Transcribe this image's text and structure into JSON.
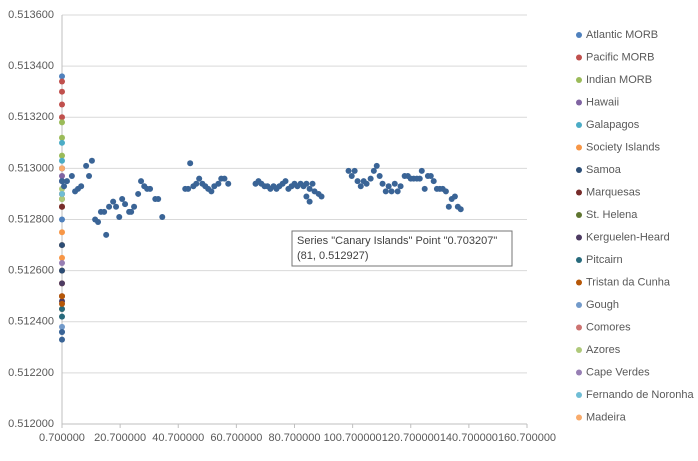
{
  "chart_data": {
    "type": "scatter",
    "xlim": [
      0.7,
      160.7
    ],
    "ylim": [
      0.512,
      0.5136
    ],
    "grid": true,
    "xticks": [
      {
        "value": 0.7,
        "label": "0.700000"
      },
      {
        "value": 20.7,
        "label": "20.700000"
      },
      {
        "value": 40.7,
        "label": "40.700000"
      },
      {
        "value": 60.7,
        "label": "60.700000"
      },
      {
        "value": 80.7,
        "label": "80.700000"
      },
      {
        "value": 100.7,
        "label": "100.700000"
      },
      {
        "value": 120.7,
        "label": "120.700000"
      },
      {
        "value": 140.7,
        "label": "140.700000"
      },
      {
        "value": 160.7,
        "label": "160.700000"
      }
    ],
    "yticks": [
      {
        "value": 0.512,
        "label": "0.512000"
      },
      {
        "value": 0.5122,
        "label": "0.512200"
      },
      {
        "value": 0.5124,
        "label": "0.512400"
      },
      {
        "value": 0.5126,
        "label": "0.512600"
      },
      {
        "value": 0.5128,
        "label": "0.512800"
      },
      {
        "value": 0.513,
        "label": "0.513000"
      },
      {
        "value": 0.5132,
        "label": "0.513200"
      },
      {
        "value": 0.5134,
        "label": "0.513400"
      },
      {
        "value": 0.5136,
        "label": "0.513600"
      }
    ],
    "series": [
      {
        "name": "Atlantic MORB",
        "color": "#4f81bd",
        "x": [
          0.7,
          0.7,
          0.7,
          0.7,
          0.7,
          0.7
        ],
        "values": [
          0.51336,
          0.513,
          0.51295,
          0.5129,
          0.51285,
          0.5128
        ]
      },
      {
        "name": "Pacific MORB",
        "color": "#c0504d",
        "x": [
          0.7,
          0.7,
          0.7,
          0.7
        ],
        "values": [
          0.51334,
          0.5133,
          0.51325,
          0.5132
        ]
      },
      {
        "name": "Indian MORB",
        "color": "#9bbb59",
        "x": [
          0.7,
          0.7,
          0.7
        ],
        "values": [
          0.51318,
          0.51312,
          0.51305
        ]
      },
      {
        "name": "Hawaii",
        "color": "#8064a2",
        "x": [
          0.7,
          0.7
        ],
        "values": [
          0.513,
          0.51297
        ]
      },
      {
        "name": "Galapagos",
        "color": "#4bacc6",
        "x": [
          0.7,
          0.7
        ],
        "values": [
          0.5131,
          0.51303
        ]
      },
      {
        "name": "Society Islands",
        "color": "#f79646",
        "x": [
          0.7,
          0.7,
          0.7,
          0.7,
          0.7,
          0.7,
          0.7
        ],
        "values": [
          0.51285,
          0.51275,
          0.51265,
          0.51255,
          0.51245,
          0.5127,
          0.5126
        ]
      },
      {
        "name": "Samoa",
        "color": "#2c4d75",
        "x": [
          0.7,
          0.7
        ],
        "values": [
          0.5127,
          0.5126
        ]
      },
      {
        "name": "Marquesas",
        "color": "#772c2a",
        "x": [
          0.7,
          0.7
        ],
        "values": [
          0.51285,
          0.5125
        ]
      },
      {
        "name": "St. Helena",
        "color": "#5f7530",
        "x": [
          0.7,
          0.7
        ],
        "values": [
          0.5129,
          0.51288
        ]
      },
      {
        "name": "Kerguelen-Heard",
        "color": "#4d3b62",
        "x": [
          0.7,
          0.7
        ],
        "values": [
          0.51255,
          0.51248
        ]
      },
      {
        "name": "Pitcairn",
        "color": "#276a7c",
        "x": [
          0.7,
          0.7
        ],
        "values": [
          0.51245,
          0.51242
        ]
      },
      {
        "name": "Tristan da Cunha",
        "color": "#b65708",
        "x": [
          0.7,
          0.7
        ],
        "values": [
          0.5125,
          0.51247
        ]
      },
      {
        "name": "Gough",
        "color": "#729aca",
        "x": [
          0.7,
          0.7
        ],
        "values": [
          0.51238,
          0.51236
        ]
      },
      {
        "name": "Comores",
        "color": "#cd7371",
        "x": [
          0.7
        ],
        "values": [
          0.5129
        ]
      },
      {
        "name": "Azores",
        "color": "#afc97a",
        "x": [
          0.7,
          0.7
        ],
        "values": [
          0.51292,
          0.51288
        ]
      },
      {
        "name": "Cape Verdes",
        "color": "#977fb4",
        "x": [
          0.7,
          0.7
        ],
        "values": [
          0.51295,
          0.51263
        ]
      },
      {
        "name": "Fernando de Noronha",
        "color": "#6fbdd5",
        "x": [
          0.7
        ],
        "values": [
          0.5129
        ]
      },
      {
        "name": "Madeira",
        "color": "#f9ab6b",
        "x": [
          0.7
        ],
        "values": [
          0.513
        ]
      },
      {
        "name": "Canary Islands",
        "color": "#3a6496",
        "x": [
          0.7,
          0.7,
          0.7,
          1.4,
          2.4,
          4.1,
          5.2,
          6.2,
          7.3,
          9.0,
          10.0,
          11.0,
          12.1,
          13.1,
          14.1,
          15.2,
          15.9,
          16.9,
          18.3,
          19.3,
          20.4,
          21.4,
          22.4,
          23.8,
          24.5,
          25.5,
          26.9,
          27.9,
          29.0,
          30.0,
          31.0,
          32.8,
          33.8,
          35.2,
          43.1,
          44.1,
          44.8,
          45.9,
          46.9,
          47.9,
          49.0,
          50.0,
          51.0,
          52.1,
          53.1,
          54.5,
          55.5,
          56.6,
          57.9,
          67.3,
          68.3,
          69.3,
          70.4,
          71.4,
          72.4,
          73.5,
          74.5,
          75.5,
          76.6,
          77.6,
          78.6,
          79.7,
          80.7,
          81.7,
          82.8,
          83.8,
          84.8,
          85.9,
          86.9,
          84.8,
          85.9,
          87.6,
          89.0,
          90.0,
          99.3,
          100.4,
          101.4,
          102.4,
          103.5,
          104.5,
          105.5,
          106.9,
          108.0,
          109.0,
          110.0,
          111.0,
          112.1,
          113.1,
          114.1,
          115.2,
          116.2,
          117.2,
          118.6,
          119.7,
          120.7,
          121.7,
          122.8,
          123.8,
          124.5,
          125.5,
          126.6,
          127.6,
          128.6,
          129.7,
          130.7,
          131.7,
          132.8,
          133.8,
          134.8,
          135.9,
          136.9,
          137.9
        ],
        "values": [
          0.51233,
          0.51236,
          0.51295,
          0.51293,
          0.51295,
          0.51297,
          0.51291,
          0.51292,
          0.51293,
          0.51301,
          0.51297,
          0.51303,
          0.5128,
          0.51279,
          0.51283,
          0.51283,
          0.51274,
          0.51285,
          0.51287,
          0.51285,
          0.51281,
          0.51288,
          0.51286,
          0.51283,
          0.51283,
          0.51285,
          0.5129,
          0.51295,
          0.51293,
          0.51292,
          0.51292,
          0.51288,
          0.51288,
          0.51281,
          0.51292,
          0.51292,
          0.51302,
          0.51293,
          0.51294,
          0.51296,
          0.51294,
          0.51293,
          0.51292,
          0.51291,
          0.51293,
          0.51294,
          0.51296,
          0.51296,
          0.51294,
          0.51294,
          0.51295,
          0.51294,
          0.51293,
          0.51293,
          0.51292,
          0.51293,
          0.51292,
          0.51293,
          0.51294,
          0.51295,
          0.51292,
          0.51293,
          0.51294,
          0.51293,
          0.51294,
          0.51293,
          0.51294,
          0.51292,
          0.51294,
          0.51289,
          0.51287,
          0.51291,
          0.5129,
          0.51289,
          0.51299,
          0.51297,
          0.51299,
          0.51295,
          0.51293,
          0.51295,
          0.51294,
          0.51296,
          0.51299,
          0.51301,
          0.51297,
          0.51294,
          0.51291,
          0.51293,
          0.51291,
          0.51294,
          0.51291,
          0.51293,
          0.51297,
          0.51297,
          0.51296,
          0.51296,
          0.51296,
          0.51296,
          0.51299,
          0.51292,
          0.51297,
          0.51297,
          0.51295,
          0.51292,
          0.51292,
          0.51292,
          0.51291,
          0.51285,
          0.51288,
          0.51289,
          0.51285,
          0.51284
        ]
      }
    ],
    "tooltip": [
      "Series \"Canary Islands\" Point \"0.703207\"",
      "(81, 0.512927)"
    ]
  }
}
